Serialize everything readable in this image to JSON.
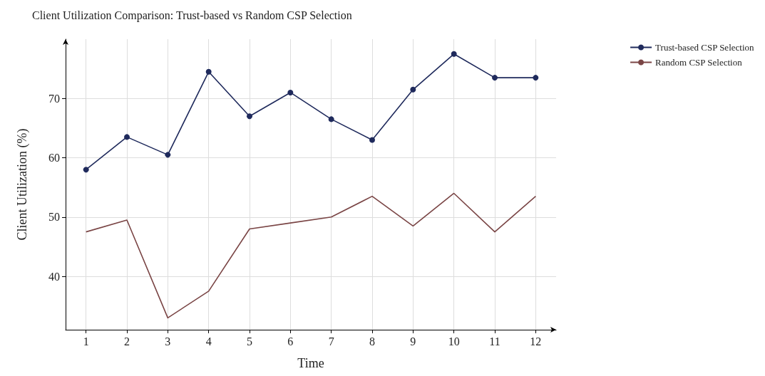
{
  "chart_data": {
    "type": "line",
    "title": "Client Utilization Comparison: Trust-based vs Random CSP Selection",
    "xlabel": "Time",
    "ylabel": "Client Utilization (%)",
    "x": [
      1,
      2,
      3,
      4,
      5,
      6,
      7,
      8,
      9,
      10,
      11,
      12
    ],
    "series": [
      {
        "name": "Trust-based CSP Selection",
        "color": "#1f2a5c",
        "marker": "circle",
        "values": [
          58,
          63.5,
          60.5,
          74.5,
          67,
          71,
          66.5,
          63,
          71.5,
          77.5,
          73.5,
          73.5
        ]
      },
      {
        "name": "Random CSP Selection",
        "color": "#7a4545",
        "marker": "none",
        "values": [
          47.5,
          49.5,
          33,
          37.5,
          48,
          49,
          50,
          53.5,
          48.5,
          54,
          47.5,
          53.5
        ]
      }
    ],
    "xlim": [
      0.5,
      12.5
    ],
    "xticks": [
      1,
      2,
      3,
      4,
      5,
      6,
      7,
      8,
      9,
      10,
      11,
      12
    ],
    "ylim": [
      31,
      80
    ],
    "yticks": [
      40,
      50,
      60,
      70
    ],
    "grid": true,
    "legend": "top right",
    "line_style": "solid"
  }
}
